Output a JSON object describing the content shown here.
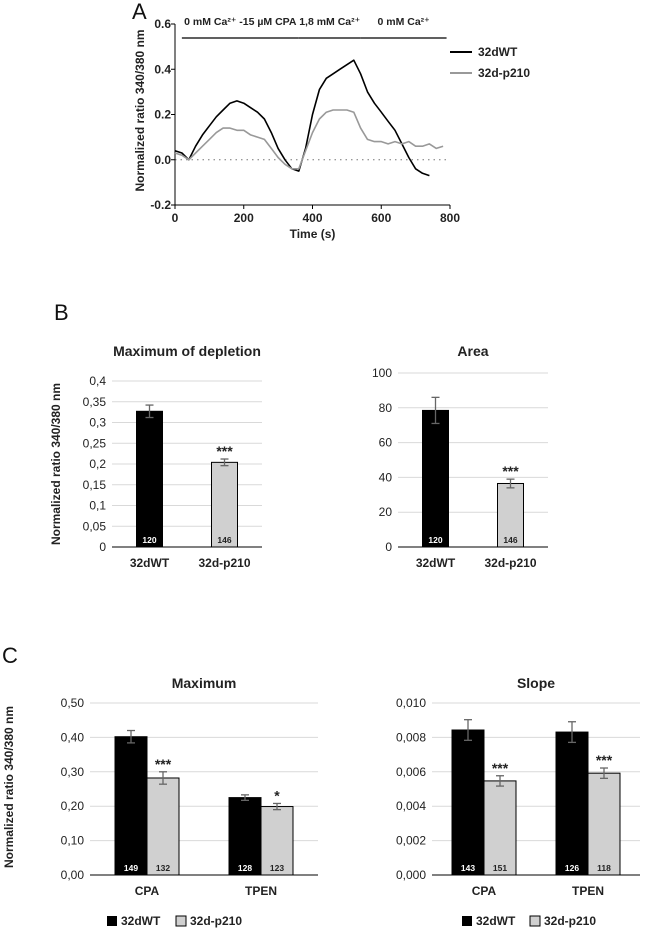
{
  "chart_data": [
    {
      "panel": "A",
      "type": "line",
      "xlabel": "Time (s)",
      "ylabel": "Normalized ratio 340/380 nm",
      "xlim": [
        0,
        800
      ],
      "ylim": [
        -0.2,
        0.6
      ],
      "xticks": [
        "0",
        "200",
        "400",
        "600",
        "800"
      ],
      "yticks": [
        "-0.2",
        "0.0",
        "0.2",
        "0.4",
        "0.6"
      ],
      "conditions": [
        {
          "label": "0 mM Ca²⁺ -15 µM CPA",
          "start": 20,
          "end": 360
        },
        {
          "label": "1,8 mM Ca²⁺",
          "start": 360,
          "end": 540
        },
        {
          "label": "0 mM Ca²⁺",
          "start": 540,
          "end": 790
        }
      ],
      "series": [
        {
          "name": "32dWT",
          "color": "#000000",
          "x": [
            0,
            20,
            40,
            60,
            80,
            100,
            120,
            140,
            160,
            180,
            200,
            220,
            240,
            260,
            280,
            300,
            320,
            340,
            360,
            380,
            400,
            420,
            440,
            460,
            480,
            500,
            520,
            540,
            560,
            580,
            600,
            620,
            640,
            660,
            680,
            700,
            720,
            740
          ],
          "y": [
            0.04,
            0.03,
            0.0,
            0.06,
            0.11,
            0.15,
            0.19,
            0.22,
            0.25,
            0.26,
            0.25,
            0.23,
            0.21,
            0.18,
            0.12,
            0.05,
            0.0,
            -0.04,
            -0.05,
            0.05,
            0.2,
            0.31,
            0.36,
            0.38,
            0.4,
            0.42,
            0.44,
            0.38,
            0.3,
            0.25,
            0.21,
            0.17,
            0.13,
            0.07,
            0.01,
            -0.04,
            -0.06,
            -0.07
          ]
        },
        {
          "name": "32d-p210",
          "color": "#999999",
          "x": [
            0,
            20,
            40,
            60,
            80,
            100,
            120,
            140,
            160,
            180,
            200,
            220,
            240,
            260,
            280,
            300,
            320,
            340,
            360,
            380,
            400,
            420,
            440,
            460,
            480,
            500,
            520,
            540,
            560,
            580,
            600,
            620,
            640,
            660,
            680,
            700,
            720,
            740,
            760,
            780
          ],
          "y": [
            0.03,
            0.02,
            0.0,
            0.03,
            0.06,
            0.09,
            0.12,
            0.14,
            0.14,
            0.13,
            0.13,
            0.11,
            0.1,
            0.09,
            0.05,
            0.01,
            -0.02,
            -0.04,
            -0.04,
            0.04,
            0.12,
            0.18,
            0.21,
            0.22,
            0.22,
            0.22,
            0.21,
            0.14,
            0.09,
            0.08,
            0.08,
            0.07,
            0.08,
            0.07,
            0.08,
            0.06,
            0.06,
            0.07,
            0.05,
            0.06
          ]
        }
      ]
    },
    {
      "panel": "B",
      "type": "bar",
      "title": "Maximum of depletion",
      "ylabel": "Normalized ratio 340/380 nm",
      "ylim": [
        0,
        0.4
      ],
      "yticks": [
        "0",
        "0,05",
        "0,1",
        "0,15",
        "0,2",
        "0,25",
        "0,3",
        "0,35",
        "0,4"
      ],
      "categories": [
        "32dWT",
        "32d-p210"
      ],
      "values": [
        0.327,
        0.204
      ],
      "errors": [
        0.015,
        0.008
      ],
      "n": [
        "120",
        "146"
      ],
      "significance": [
        "",
        "***"
      ]
    },
    {
      "panel": "B",
      "type": "bar",
      "title": "Area",
      "ylim": [
        0,
        100
      ],
      "yticks": [
        "0",
        "20",
        "40",
        "60",
        "80",
        "100"
      ],
      "categories": [
        "32dWT",
        "32d-p210"
      ],
      "values": [
        78.5,
        36.5
      ],
      "errors": [
        7.5,
        2.5
      ],
      "n": [
        "120",
        "146"
      ],
      "significance": [
        "",
        "***"
      ]
    },
    {
      "panel": "C",
      "type": "bar",
      "title": "Maximum",
      "ylabel": "Normalized ratio 340/380 nm",
      "ylim": [
        0,
        0.5
      ],
      "yticks": [
        "0,00",
        "0,10",
        "0,20",
        "0,30",
        "0,40",
        "0,50"
      ],
      "categories": [
        "CPA",
        "TPEN"
      ],
      "series": [
        {
          "name": "32dWT",
          "values": [
            0.402,
            0.225
          ],
          "errors": [
            0.018,
            0.008
          ],
          "n": [
            "149",
            "128"
          ],
          "significance": [
            "",
            ""
          ]
        },
        {
          "name": "32d-p210",
          "values": [
            0.282,
            0.199
          ],
          "errors": [
            0.018,
            0.009
          ],
          "n": [
            "132",
            "123"
          ],
          "significance": [
            "***",
            "*"
          ]
        }
      ]
    },
    {
      "panel": "C",
      "type": "bar",
      "title": "Slope",
      "ylim": [
        0,
        0.01
      ],
      "yticks": [
        "0,000",
        "0,002",
        "0,004",
        "0,006",
        "0,008",
        "0,010"
      ],
      "categories": [
        "CPA",
        "TPEN"
      ],
      "series": [
        {
          "name": "32dWT",
          "values": [
            0.00843,
            0.00831
          ],
          "errors": [
            0.0006,
            0.0006
          ],
          "n": [
            "143",
            "126"
          ],
          "significance": [
            "",
            ""
          ]
        },
        {
          "name": "32d-p210",
          "values": [
            0.00547,
            0.00592
          ],
          "errors": [
            0.0003,
            0.0003
          ],
          "n": [
            "151",
            "118"
          ],
          "significance": [
            "***",
            "***"
          ]
        }
      ]
    }
  ],
  "panel_labels": {
    "a": "A",
    "b": "B",
    "c": "C"
  },
  "legend_c": {
    "wt": "32dWT",
    "mut": "32d-p210"
  }
}
